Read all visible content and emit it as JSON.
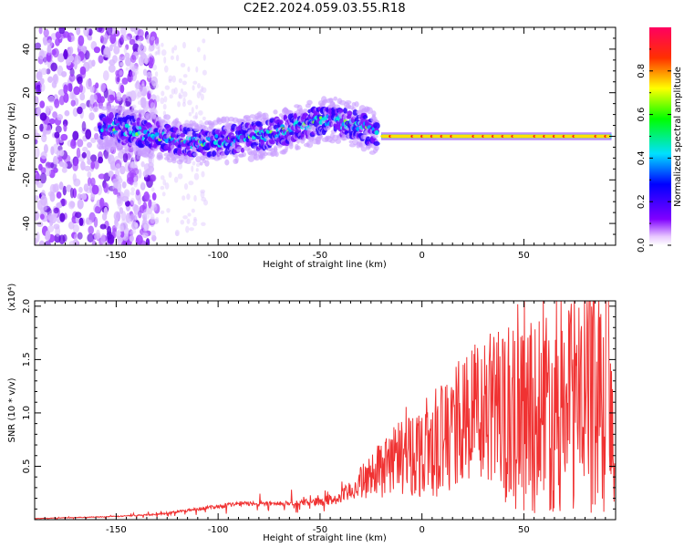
{
  "title": "C2E2.2024.059.03.55.R18",
  "chart_data": [
    {
      "type": "heatmap",
      "x_axis": {
        "label": "Height of straight line (km)",
        "range": [
          -190,
          95
        ],
        "ticks": [
          -150,
          -100,
          -50,
          0,
          50
        ]
      },
      "y_axis": {
        "label": "Frequency (Hz)",
        "range": [
          -50,
          50
        ],
        "ticks": [
          -40,
          -20,
          0,
          20,
          40
        ]
      },
      "colorbar": {
        "label": "Normalized spectral amplitude",
        "range": [
          0,
          1
        ],
        "ticks": [
          "0.0",
          "0.2",
          "0.4",
          "0.6",
          "0.8"
        ],
        "colormap": "rainbow"
      },
      "ridge": {
        "x": [
          -155,
          -140,
          -125,
          -110,
          -95,
          -80,
          -65,
          -55,
          -45,
          -38,
          -30,
          -25,
          -20,
          -10,
          0,
          20,
          40,
          60,
          80,
          92
        ],
        "y": [
          4,
          2,
          -1,
          -3,
          -2,
          0,
          3,
          6,
          8,
          6,
          5,
          2,
          0,
          0,
          0,
          0,
          0,
          0,
          0,
          0
        ]
      }
    },
    {
      "type": "line",
      "x_axis": {
        "label": "Height of straight line (km)",
        "range": [
          -190,
          95
        ],
        "ticks": [
          -150,
          -100,
          -50,
          0,
          50
        ]
      },
      "y_axis": {
        "label": "SNR (10 * v/v)",
        "multiplier": "(x10⁴)",
        "range": [
          0,
          2.05
        ],
        "ticks": [
          "0.5",
          "1.0",
          "1.5",
          "2.0"
        ]
      },
      "series": [
        {
          "color": "#f03232",
          "x": [
            -190,
            -170,
            -150,
            -130,
            -110,
            -90,
            -70,
            -50,
            -40,
            -30,
            -20,
            -10,
            0,
            10,
            20,
            30,
            40,
            50,
            60,
            70,
            80,
            85,
            90,
            92,
            94
          ],
          "y": [
            0.01,
            0.02,
            0.03,
            0.05,
            0.1,
            0.15,
            0.15,
            0.17,
            0.2,
            0.35,
            0.5,
            0.6,
            0.65,
            0.75,
            0.92,
            1.02,
            1.05,
            1.05,
            1.07,
            1.1,
            1.15,
            1.25,
            1.35,
            1.2,
            0.6
          ]
        }
      ]
    }
  ]
}
